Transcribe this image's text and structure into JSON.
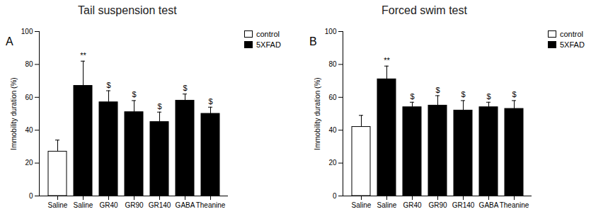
{
  "chart_data": [
    {
      "type": "bar",
      "panel": "A",
      "title": "Tail suspension test",
      "ylabel": "Immobility duration (%)",
      "categories": [
        "Saline",
        "Saline",
        "GR40",
        "GR90",
        "GR140",
        "GABA",
        "Theanine"
      ],
      "series": [
        {
          "name": "control",
          "color": "#ffffff",
          "values": [
            27,
            null,
            null,
            null,
            null,
            null,
            null
          ],
          "errors": [
            7,
            null,
            null,
            null,
            null,
            null,
            null
          ]
        },
        {
          "name": "5XFAD",
          "color": "#000000",
          "values": [
            null,
            67,
            57,
            51,
            45,
            58,
            50
          ],
          "errors": [
            null,
            15,
            7,
            7,
            6,
            4,
            4
          ]
        }
      ],
      "annotations": [
        null,
        "**",
        "$",
        "$",
        "$",
        "$",
        "$"
      ],
      "ylim": [
        0,
        100
      ],
      "yticks": [
        0,
        20,
        40,
        60,
        80,
        100
      ],
      "legend": "top-right"
    },
    {
      "type": "bar",
      "panel": "B",
      "title": "Forced swim test",
      "ylabel": "Immobility duration (%)",
      "categories": [
        "Saline",
        "Saline",
        "GR40",
        "GR90",
        "GR140",
        "GABA",
        "Theanine"
      ],
      "series": [
        {
          "name": "control",
          "color": "#ffffff",
          "values": [
            42,
            null,
            null,
            null,
            null,
            null,
            null
          ],
          "errors": [
            7,
            null,
            null,
            null,
            null,
            null,
            null
          ]
        },
        {
          "name": "5XFAD",
          "color": "#000000",
          "values": [
            null,
            71,
            54,
            55,
            52,
            54,
            53
          ],
          "errors": [
            null,
            8,
            3,
            6,
            6,
            3,
            5
          ]
        }
      ],
      "annotations": [
        null,
        "**",
        "$",
        "$",
        "$",
        "$",
        "$"
      ],
      "ylim": [
        0,
        100
      ],
      "yticks": [
        0,
        20,
        40,
        60,
        80,
        100
      ],
      "legend": "top-right"
    }
  ]
}
